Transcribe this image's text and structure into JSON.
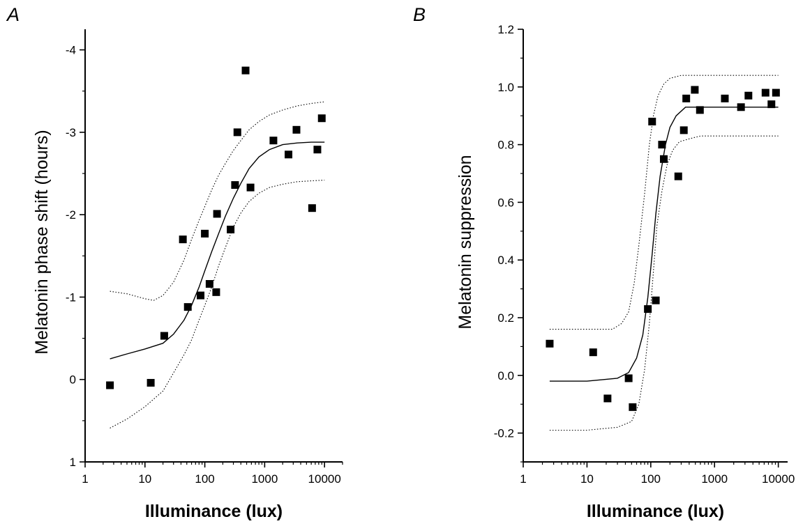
{
  "chart_data": [
    {
      "type": "scatter",
      "panel_label": "A",
      "xlabel": "Illuminance (lux)",
      "ylabel": "Melatonin phase shift (hours)",
      "xscale": "log",
      "xlim": [
        1,
        20000
      ],
      "ylim": [
        1,
        -4.25
      ],
      "y_inverted": true,
      "x_ticks": [
        "1",
        "10",
        "100",
        "1000",
        "10000"
      ],
      "y_ticks": [
        "1",
        "0",
        "-1",
        "-2",
        "-3",
        "-4"
      ],
      "series": [
        {
          "points": [
            {
              "x": 2.6,
              "y": 0.07
            },
            {
              "x": 12.5,
              "y": 0.04
            },
            {
              "x": 21,
              "y": -0.53
            },
            {
              "x": 43,
              "y": -1.7
            },
            {
              "x": 52,
              "y": -0.88
            },
            {
              "x": 85,
              "y": -1.02
            },
            {
              "x": 100,
              "y": -1.77
            },
            {
              "x": 120,
              "y": -1.16
            },
            {
              "x": 155,
              "y": -1.06
            },
            {
              "x": 160,
              "y": -2.01
            },
            {
              "x": 270,
              "y": -1.82
            },
            {
              "x": 320,
              "y": -2.36
            },
            {
              "x": 350,
              "y": -3.0
            },
            {
              "x": 480,
              "y": -3.75
            },
            {
              "x": 580,
              "y": -2.33
            },
            {
              "x": 1400,
              "y": -2.9
            },
            {
              "x": 2500,
              "y": -2.73
            },
            {
              "x": 3400,
              "y": -3.03
            },
            {
              "x": 6200,
              "y": -2.08
            },
            {
              "x": 7600,
              "y": -2.79
            },
            {
              "x": 9000,
              "y": -3.17
            }
          ]
        }
      ],
      "fit": {
        "x": [
          2.6,
          5,
          10,
          20,
          30,
          45,
          60,
          80,
          100,
          130,
          170,
          220,
          300,
          400,
          550,
          800,
          1200,
          2000,
          3500,
          6000,
          10000
        ],
        "y": [
          -0.25,
          -0.31,
          -0.37,
          -0.44,
          -0.55,
          -0.72,
          -0.9,
          -1.12,
          -1.32,
          -1.55,
          -1.77,
          -1.98,
          -2.2,
          -2.38,
          -2.56,
          -2.7,
          -2.79,
          -2.85,
          -2.87,
          -2.88,
          -2.88
        ]
      },
      "ci_upper": {
        "x": [
          2.6,
          5,
          10,
          14,
          20,
          30,
          45,
          60,
          80,
          100,
          130,
          170,
          220,
          300,
          400,
          550,
          800,
          1200,
          2000,
          3500,
          6000,
          10000
        ],
        "y": [
          -1.07,
          -1.04,
          -0.98,
          -0.96,
          -1.02,
          -1.18,
          -1.45,
          -1.7,
          -1.93,
          -2.1,
          -2.3,
          -2.48,
          -2.62,
          -2.78,
          -2.9,
          -3.03,
          -3.13,
          -3.21,
          -3.27,
          -3.32,
          -3.35,
          -3.37
        ]
      },
      "ci_lower": {
        "x": [
          2.6,
          5,
          10,
          20,
          30,
          45,
          60,
          80,
          100,
          130,
          170,
          220,
          300,
          400,
          550,
          800,
          1200,
          2000,
          3500,
          6000,
          10000
        ],
        "y": [
          0.59,
          0.48,
          0.33,
          0.14,
          -0.08,
          -0.3,
          -0.48,
          -0.72,
          -0.9,
          -1.12,
          -1.38,
          -1.6,
          -1.85,
          -2.02,
          -2.16,
          -2.26,
          -2.33,
          -2.37,
          -2.4,
          -2.41,
          -2.42
        ]
      }
    },
    {
      "type": "scatter",
      "panel_label": "B",
      "xlabel": "Illuminance (lux)",
      "ylabel": "Melatonin suppression",
      "xscale": "log",
      "xlim": [
        1,
        14000
      ],
      "ylim": [
        -0.3,
        1.2
      ],
      "x_ticks": [
        "1",
        "10",
        "100",
        "1000",
        "10000"
      ],
      "y_ticks": [
        "-0.2",
        "0.0",
        "0.2",
        "0.4",
        "0.6",
        "0.8",
        "1.0",
        "1.2"
      ],
      "series": [
        {
          "points": [
            {
              "x": 2.6,
              "y": 0.11
            },
            {
              "x": 12.5,
              "y": 0.08
            },
            {
              "x": 21,
              "y": -0.08
            },
            {
              "x": 45,
              "y": -0.01
            },
            {
              "x": 52,
              "y": -0.11
            },
            {
              "x": 90,
              "y": 0.23
            },
            {
              "x": 105,
              "y": 0.88
            },
            {
              "x": 120,
              "y": 0.26
            },
            {
              "x": 150,
              "y": 0.8
            },
            {
              "x": 160,
              "y": 0.75
            },
            {
              "x": 270,
              "y": 0.69
            },
            {
              "x": 330,
              "y": 0.85
            },
            {
              "x": 360,
              "y": 0.96
            },
            {
              "x": 490,
              "y": 0.99
            },
            {
              "x": 590,
              "y": 0.92
            },
            {
              "x": 1450,
              "y": 0.96
            },
            {
              "x": 2600,
              "y": 0.93
            },
            {
              "x": 3400,
              "y": 0.97
            },
            {
              "x": 6300,
              "y": 0.98
            },
            {
              "x": 7800,
              "y": 0.94
            },
            {
              "x": 9200,
              "y": 0.98
            }
          ]
        }
      ],
      "fit": {
        "x": [
          2.6,
          10,
          30,
          45,
          60,
          75,
          90,
          105,
          120,
          140,
          170,
          200,
          250,
          350,
          500,
          1000,
          3000,
          10000
        ],
        "y": [
          -0.02,
          -0.02,
          -0.01,
          0.01,
          0.06,
          0.14,
          0.27,
          0.42,
          0.56,
          0.69,
          0.8,
          0.86,
          0.9,
          0.93,
          0.93,
          0.93,
          0.93,
          0.93
        ]
      },
      "ci_upper": {
        "x": [
          2.6,
          10,
          25,
          35,
          45,
          55,
          65,
          80,
          95,
          110,
          130,
          160,
          200,
          300,
          500,
          1000,
          3000,
          10000
        ],
        "y": [
          0.16,
          0.16,
          0.16,
          0.18,
          0.22,
          0.32,
          0.45,
          0.63,
          0.8,
          0.9,
          0.97,
          1.01,
          1.03,
          1.04,
          1.04,
          1.04,
          1.04,
          1.04
        ]
      },
      "ci_lower": {
        "x": [
          2.6,
          10,
          30,
          50,
          65,
          80,
          95,
          110,
          125,
          150,
          180,
          220,
          280,
          400,
          600,
          1000,
          3000,
          10000
        ],
        "y": [
          -0.19,
          -0.19,
          -0.18,
          -0.16,
          -0.1,
          0.02,
          0.18,
          0.36,
          0.52,
          0.64,
          0.73,
          0.78,
          0.81,
          0.82,
          0.83,
          0.83,
          0.83,
          0.83
        ]
      }
    }
  ]
}
